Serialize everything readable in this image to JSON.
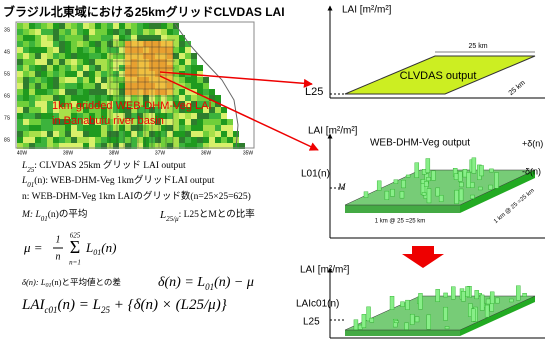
{
  "title": "ブラジル北東域における25kmグリッドCLVDAS LAI",
  "map": {
    "lat_labels": [
      "3S",
      "4S",
      "5S",
      "6S",
      "7S",
      "8S"
    ],
    "lon_labels": [
      "40W",
      "39W",
      "38W",
      "37W",
      "36W",
      "35W"
    ],
    "annotation": [
      "1km gridded WEB-DHM-Veg LAI",
      "in Banabuiu river basin"
    ]
  },
  "definitions": {
    "l25": {
      "symbol": "L",
      "sub": "25",
      "text": ": CLVDAS 25km グリッド LAI output"
    },
    "l01": {
      "symbol": "L",
      "sub": "01",
      "text": "(n): WEB-DHM-Veg 1kmグリッドLAI output"
    },
    "n": {
      "text": "n: WEB-DHM-Veg 1km LAIのグリッド数(n=25×25=625)"
    },
    "mean": {
      "symbol": "M: L",
      "sub": "01",
      "text": "(n)の平均"
    },
    "ratio": {
      "symbol": "L",
      "sub": "25",
      "den": "/μ",
      "text": ": L25とMとの比率"
    }
  },
  "formulas": {
    "mu": {
      "lhs": "μ =",
      "num": "1",
      "den": "n",
      "sigma": "Σ",
      "upper": "625",
      "lower": "n=1",
      "term": "L",
      "sub": "01",
      "arg": "(n)"
    },
    "delta_def": {
      "symbol": "δ(n): L",
      "sub": "01",
      "text": "(n)と平均値との差"
    },
    "delta": {
      "lhs": "δ(n) = L",
      "sub": "01",
      "rhs": "(n) − μ"
    },
    "lai": {
      "lhs": "LAI",
      "sub": "c01",
      "mid": "(n) = L",
      "sub2": "25",
      "rhs": " + {δ(n) × (L25/μ)}"
    }
  },
  "panels": [
    {
      "axis": "LAI [m²/m²]",
      "label": "CLVDAS output",
      "width": "25 km",
      "depth": "25 km",
      "level": "L25"
    },
    {
      "axis": "LAI [m²/m²]",
      "label": "WEB-DHM-Veg output",
      "level": "L01(n)",
      "mean": "M",
      "plus": "+δ(n)",
      "minus": "-δ(n)",
      "width": "1 km @ 25 =25 km",
      "depth": "1 km @ 25 =25 km"
    },
    {
      "axis": "LAI [m²/m²]",
      "level": "LAIc01(n)",
      "base": "L25"
    }
  ]
}
